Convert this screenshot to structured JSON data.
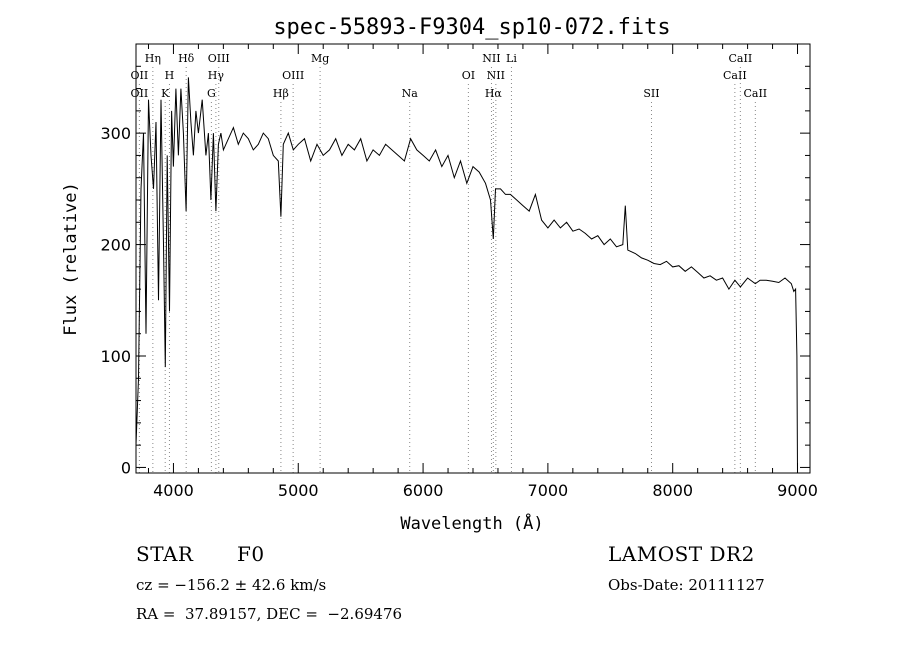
{
  "chart_data": {
    "type": "line",
    "title": "spec-55893-F9304_sp10-072.fits",
    "xlabel": "Wavelength (Å)",
    "ylabel": "Flux (relative)",
    "xlim": [
      3700,
      9100
    ],
    "ylim": [
      -5,
      380
    ],
    "xticks": [
      4000,
      5000,
      6000,
      7000,
      8000,
      9000
    ],
    "yticks": [
      0,
      100,
      200,
      300
    ],
    "grid": false,
    "series": [
      {
        "name": "flux",
        "x": [
          3700,
          3720,
          3740,
          3760,
          3780,
          3800,
          3820,
          3840,
          3860,
          3880,
          3900,
          3920,
          3935,
          3950,
          3968,
          3985,
          4000,
          4020,
          4040,
          4060,
          4080,
          4101,
          4120,
          4140,
          4160,
          4180,
          4200,
          4230,
          4260,
          4280,
          4300,
          4320,
          4340,
          4360,
          4380,
          4400,
          4440,
          4480,
          4520,
          4560,
          4600,
          4640,
          4680,
          4720,
          4760,
          4800,
          4840,
          4861,
          4880,
          4920,
          4960,
          5000,
          5050,
          5100,
          5150,
          5200,
          5250,
          5300,
          5350,
          5400,
          5450,
          5500,
          5550,
          5600,
          5650,
          5700,
          5750,
          5800,
          5850,
          5900,
          5950,
          6000,
          6050,
          6100,
          6150,
          6200,
          6250,
          6300,
          6350,
          6400,
          6450,
          6500,
          6540,
          6563,
          6580,
          6620,
          6660,
          6700,
          6750,
          6800,
          6850,
          6900,
          6950,
          7000,
          7050,
          7100,
          7150,
          7200,
          7250,
          7300,
          7350,
          7400,
          7450,
          7500,
          7550,
          7600,
          7620,
          7640,
          7700,
          7750,
          7800,
          7850,
          7900,
          7950,
          8000,
          8050,
          8100,
          8150,
          8200,
          8250,
          8300,
          8350,
          8400,
          8450,
          8498,
          8542,
          8600,
          8662,
          8700,
          8750,
          8800,
          8850,
          8900,
          8950,
          8970,
          8985,
          8995,
          9000
        ],
        "values": [
          20,
          80,
          250,
          300,
          120,
          330,
          280,
          250,
          310,
          150,
          330,
          200,
          90,
          280,
          140,
          320,
          270,
          340,
          280,
          340,
          300,
          230,
          350,
          310,
          280,
          320,
          300,
          330,
          280,
          300,
          240,
          300,
          230,
          290,
          300,
          285,
          295,
          305,
          290,
          300,
          295,
          285,
          290,
          300,
          295,
          280,
          275,
          225,
          290,
          300,
          285,
          290,
          295,
          275,
          290,
          280,
          285,
          295,
          280,
          290,
          285,
          295,
          275,
          285,
          280,
          290,
          285,
          280,
          275,
          295,
          285,
          280,
          275,
          285,
          270,
          280,
          260,
          275,
          255,
          270,
          265,
          255,
          240,
          205,
          250,
          250,
          245,
          245,
          240,
          235,
          230,
          245,
          222,
          215,
          222,
          215,
          220,
          212,
          214,
          210,
          205,
          208,
          200,
          205,
          198,
          200,
          235,
          195,
          192,
          188,
          186,
          183,
          182,
          185,
          180,
          181,
          176,
          180,
          175,
          170,
          172,
          168,
          170,
          160,
          168,
          162,
          170,
          165,
          168,
          168,
          167,
          166,
          170,
          165,
          158,
          160,
          100,
          -5
        ]
      }
    ],
    "lines": [
      {
        "name": "OII",
        "wavelength": 3727,
        "row": 2
      },
      {
        "name": "OII",
        "wavelength": 3727,
        "row": 3
      },
      {
        "name": "Hη",
        "wavelength": 3835,
        "row": 1
      },
      {
        "name": "K",
        "wavelength": 3934,
        "row": 3
      },
      {
        "name": "H",
        "wavelength": 3968,
        "row": 2
      },
      {
        "name": "Hδ",
        "wavelength": 4102,
        "row": 1
      },
      {
        "name": "G",
        "wavelength": 4304,
        "row": 3
      },
      {
        "name": "OIII",
        "wavelength": 4363,
        "row": 1
      },
      {
        "name": "Hγ",
        "wavelength": 4340,
        "row": 2
      },
      {
        "name": "Hβ",
        "wavelength": 4861,
        "row": 3
      },
      {
        "name": "OIII",
        "wavelength": 4959,
        "row": 2
      },
      {
        "name": "Mg",
        "wavelength": 5175,
        "row": 1
      },
      {
        "name": "Na",
        "wavelength": 5893,
        "row": 3
      },
      {
        "name": "OI",
        "wavelength": 6363,
        "row": 2
      },
      {
        "name": "NII",
        "wavelength": 6548,
        "row": 1
      },
      {
        "name": "NII",
        "wavelength": 6583,
        "row": 2
      },
      {
        "name": "Hα",
        "wavelength": 6563,
        "row": 3
      },
      {
        "name": "Li",
        "wavelength": 6708,
        "row": 1
      },
      {
        "name": "SII",
        "wavelength": 7830,
        "row": 3
      },
      {
        "name": "CaII",
        "wavelength": 8542,
        "row": 1
      },
      {
        "name": "CaII",
        "wavelength": 8498,
        "row": 2
      },
      {
        "name": "CaII",
        "wavelength": 8662,
        "row": 3
      }
    ]
  },
  "info": {
    "object_class": "STAR",
    "subclass": "F0",
    "survey": "LAMOST DR2",
    "redshift_line": "cz = −156.2 ± 42.6 km/s",
    "obs_date_line": "Obs-Date: 20111127",
    "coords_line": "RA =  37.89157, DEC =  −2.69476"
  },
  "colors": {
    "line": "#000000",
    "markers": "#888888",
    "background": "#ffffff"
  }
}
